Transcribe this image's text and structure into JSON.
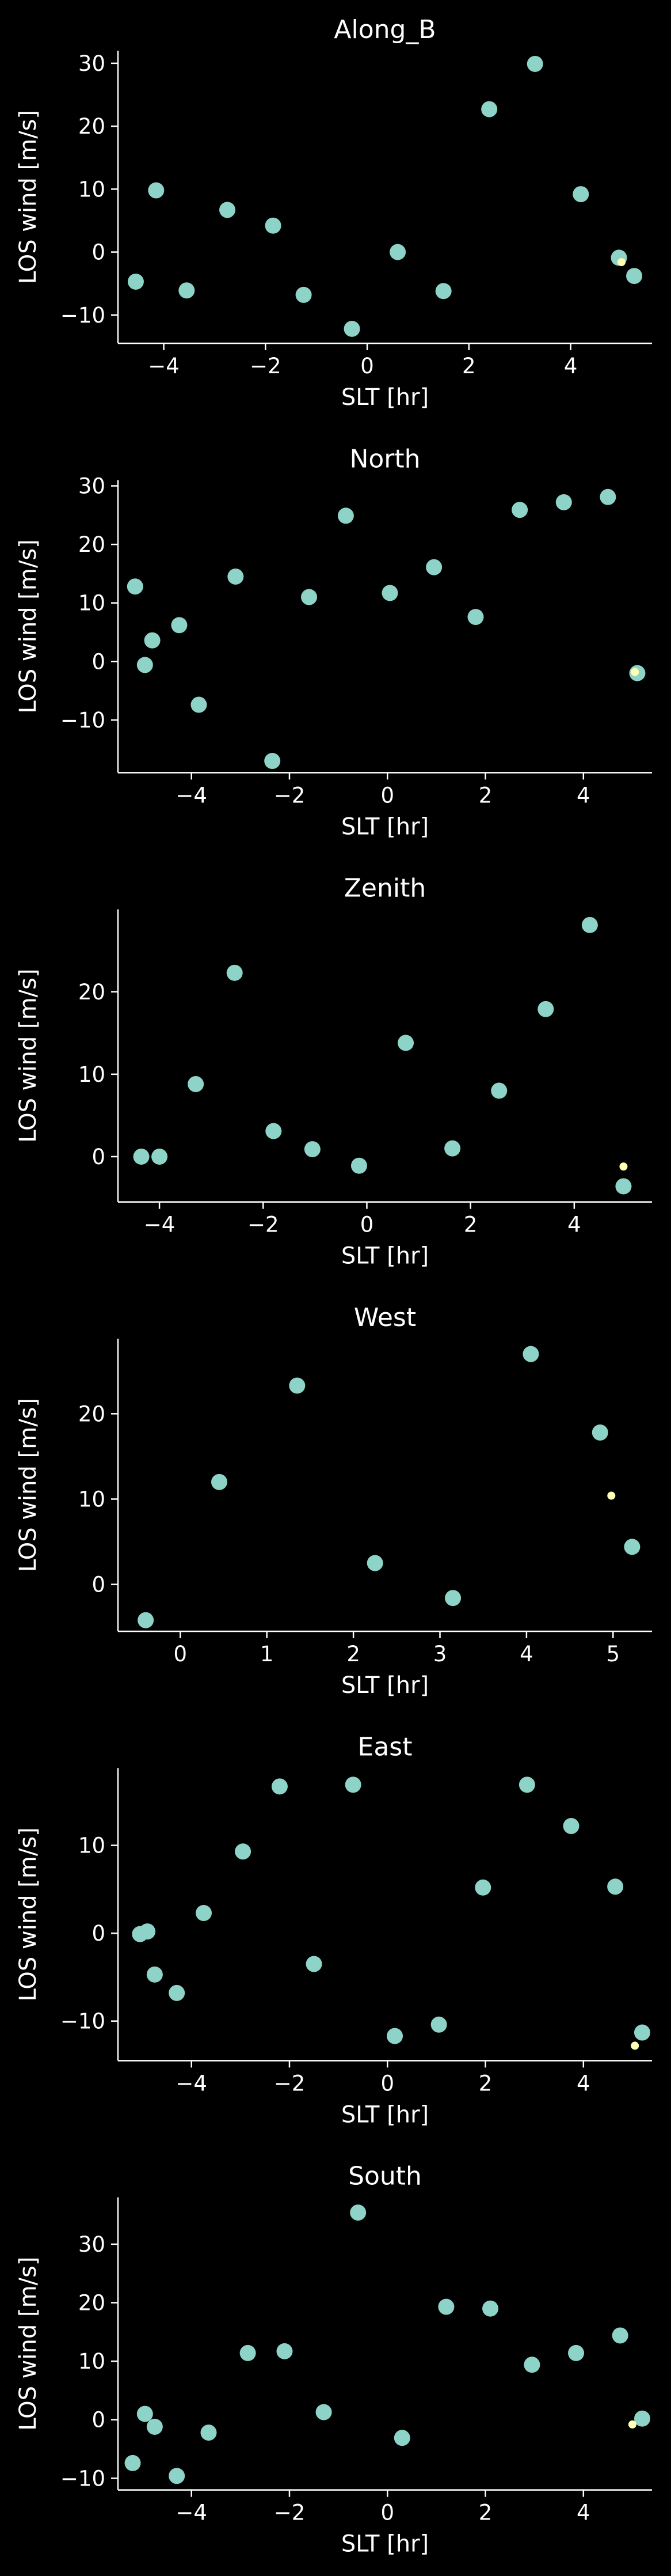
{
  "chart_data": [
    {
      "type": "scatter",
      "title": "Along_B",
      "xlabel": "SLT [hr]",
      "ylabel": "LOS wind [m/s]",
      "xlim": [
        -4.9,
        5.6
      ],
      "ylim": [
        -14.5,
        32
      ],
      "xticks": [
        -4,
        -2,
        0,
        2,
        4
      ],
      "yticks": [
        -10,
        0,
        10,
        20,
        30
      ],
      "colors": {
        "points": "#8dd3c7",
        "highlight": "#ffffb3"
      },
      "series": [
        {
          "x": [
            -4.55,
            -4.15,
            -3.55,
            -2.75,
            -1.85,
            -1.25,
            -0.3,
            0.6,
            1.5,
            2.4,
            3.3,
            4.2,
            4.95,
            5.25
          ],
          "y": [
            -4.7,
            9.8,
            -6.1,
            6.7,
            4.2,
            -6.8,
            -12.2,
            0.0,
            -6.2,
            22.7,
            29.9,
            9.2,
            -0.9,
            -3.8
          ]
        },
        {
          "x": [
            5.0
          ],
          "y": [
            -1.6
          ]
        }
      ]
    },
    {
      "type": "scatter",
      "title": "North",
      "xlabel": "SLT [hr]",
      "ylabel": "LOS wind [m/s]",
      "xlim": [
        -5.5,
        5.4
      ],
      "ylim": [
        -19,
        31
      ],
      "xticks": [
        -4,
        -2,
        0,
        2,
        4
      ],
      "yticks": [
        -10,
        0,
        10,
        20,
        30
      ],
      "colors": {
        "points": "#8dd3c7",
        "highlight": "#ffffb3"
      },
      "series": [
        {
          "x": [
            -5.15,
            -4.95,
            -4.8,
            -4.25,
            -3.85,
            -3.1,
            -2.35,
            -1.6,
            -0.85,
            0.05,
            0.95,
            1.8,
            2.7,
            3.6,
            4.5,
            5.1
          ],
          "y": [
            12.8,
            -0.6,
            3.6,
            6.2,
            -7.4,
            14.5,
            -17.0,
            11.0,
            24.9,
            11.7,
            16.1,
            7.6,
            25.9,
            27.2,
            28.1,
            -2.0
          ]
        },
        {
          "x": [
            5.05
          ],
          "y": [
            -1.8
          ]
        }
      ]
    },
    {
      "type": "scatter",
      "title": "Zenith",
      "xlabel": "SLT [hr]",
      "ylabel": "LOS wind [m/s]",
      "xlim": [
        -4.8,
        5.5
      ],
      "ylim": [
        -5.5,
        30
      ],
      "xticks": [
        -4,
        -2,
        0,
        2,
        4
      ],
      "yticks": [
        0,
        10,
        20
      ],
      "colors": {
        "points": "#8dd3c7",
        "highlight": "#ffffb3"
      },
      "series": [
        {
          "x": [
            -4.35,
            -4.0,
            -3.3,
            -2.55,
            -1.8,
            -1.05,
            -0.15,
            0.75,
            1.65,
            2.55,
            3.45,
            4.3,
            4.95
          ],
          "y": [
            0.0,
            0.0,
            8.8,
            22.3,
            3.1,
            0.9,
            -1.1,
            13.8,
            1.0,
            8.0,
            17.9,
            28.1,
            -3.6
          ]
        },
        {
          "x": [
            4.95
          ],
          "y": [
            -1.2
          ]
        }
      ]
    },
    {
      "type": "scatter",
      "title": "West",
      "xlabel": "SLT [hr]",
      "ylabel": "LOS wind [m/s]",
      "xlim": [
        -0.72,
        5.45
      ],
      "ylim": [
        -5.5,
        28.8
      ],
      "xticks": [
        0,
        1,
        2,
        3,
        4,
        5
      ],
      "yticks": [
        0,
        10,
        20
      ],
      "colors": {
        "points": "#8dd3c7",
        "highlight": "#ffffb3"
      },
      "series": [
        {
          "x": [
            -0.4,
            0.45,
            1.35,
            2.25,
            3.15,
            4.05,
            4.85,
            5.22
          ],
          "y": [
            -4.2,
            12.0,
            23.3,
            2.5,
            -1.6,
            27.0,
            17.8,
            4.4
          ]
        },
        {
          "x": [
            4.98
          ],
          "y": [
            10.4
          ]
        }
      ]
    },
    {
      "type": "scatter",
      "title": "East",
      "xlabel": "SLT [hr]",
      "ylabel": "LOS wind [m/s]",
      "xlim": [
        -5.5,
        5.4
      ],
      "ylim": [
        -14.5,
        18.8
      ],
      "xticks": [
        -4,
        -2,
        0,
        2,
        4
      ],
      "yticks": [
        -10,
        0,
        10
      ],
      "colors": {
        "points": "#8dd3c7",
        "highlight": "#ffffb3"
      },
      "series": [
        {
          "x": [
            -5.05,
            -4.9,
            -4.75,
            -4.3,
            -3.75,
            -2.95,
            -2.2,
            -1.5,
            -0.7,
            0.15,
            1.05,
            1.95,
            2.85,
            3.75,
            4.65,
            5.2
          ],
          "y": [
            -0.1,
            0.2,
            -4.7,
            -6.8,
            2.3,
            9.3,
            16.7,
            -3.5,
            16.9,
            -11.7,
            -10.4,
            5.2,
            16.9,
            12.2,
            5.3,
            -11.3
          ]
        },
        {
          "x": [
            5.05
          ],
          "y": [
            -12.8
          ]
        }
      ]
    },
    {
      "type": "scatter",
      "title": "South",
      "xlabel": "SLT [hr]",
      "ylabel": "LOS wind [m/s]",
      "xlim": [
        -5.5,
        5.4
      ],
      "ylim": [
        -12,
        38
      ],
      "xticks": [
        -4,
        -2,
        0,
        2,
        4
      ],
      "yticks": [
        -10,
        0,
        10,
        20,
        30
      ],
      "colors": {
        "points": "#8dd3c7",
        "highlight": "#ffffb3"
      },
      "series": [
        {
          "x": [
            -5.2,
            -4.95,
            -4.75,
            -4.3,
            -3.65,
            -2.85,
            -2.1,
            -1.3,
            -0.6,
            0.3,
            1.2,
            2.1,
            2.95,
            3.85,
            4.75,
            5.2
          ],
          "y": [
            -7.4,
            1.0,
            -1.2,
            -9.6,
            -2.2,
            11.4,
            11.7,
            1.3,
            35.4,
            -3.1,
            19.3,
            19.0,
            9.4,
            11.4,
            14.4,
            0.2
          ]
        },
        {
          "x": [
            5.0
          ],
          "y": [
            -0.8
          ]
        }
      ]
    }
  ]
}
